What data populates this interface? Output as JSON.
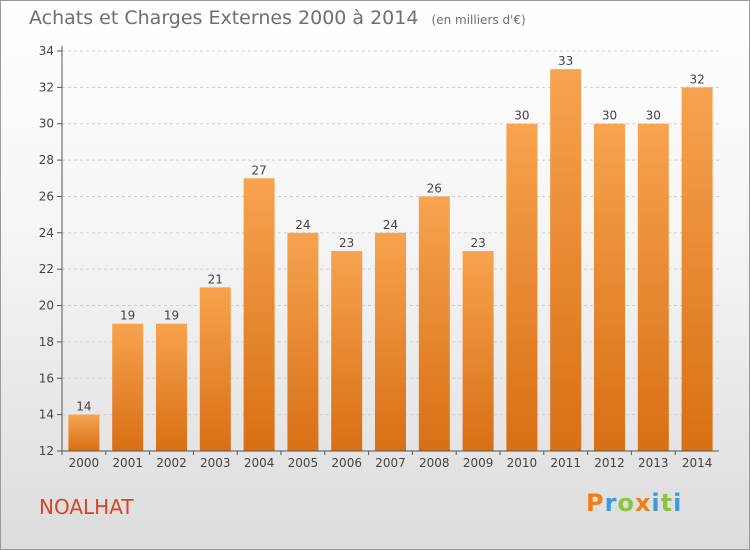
{
  "chart_data": {
    "type": "bar",
    "title": "Achats et Charges Externes 2000 à 2014",
    "subtitle": "(en milliers d'€)",
    "categories": [
      "2000",
      "2001",
      "2002",
      "2003",
      "2004",
      "2005",
      "2006",
      "2007",
      "2008",
      "2009",
      "2010",
      "2011",
      "2012",
      "2013",
      "2014"
    ],
    "values": [
      14,
      19,
      19,
      21,
      27,
      24,
      23,
      24,
      26,
      23,
      30,
      33,
      30,
      30,
      32
    ],
    "ylim": [
      12,
      34
    ],
    "yticks": [
      12,
      14,
      16,
      18,
      20,
      22,
      24,
      26,
      28,
      30,
      32,
      34
    ],
    "grid": true,
    "bar_color_top": "#f7a34f",
    "bar_color_bottom": "#d86f14"
  },
  "footer": {
    "commune": "NOALHAT",
    "logo_letters": [
      "P",
      "r",
      "o",
      "x",
      "i",
      "t",
      "i"
    ],
    "logo_colors": [
      "#ef7f1a",
      "#3a9be0",
      "#8bc443",
      "#ef7f1a",
      "#3a9be0",
      "#8bc443",
      "#3a9be0"
    ]
  }
}
